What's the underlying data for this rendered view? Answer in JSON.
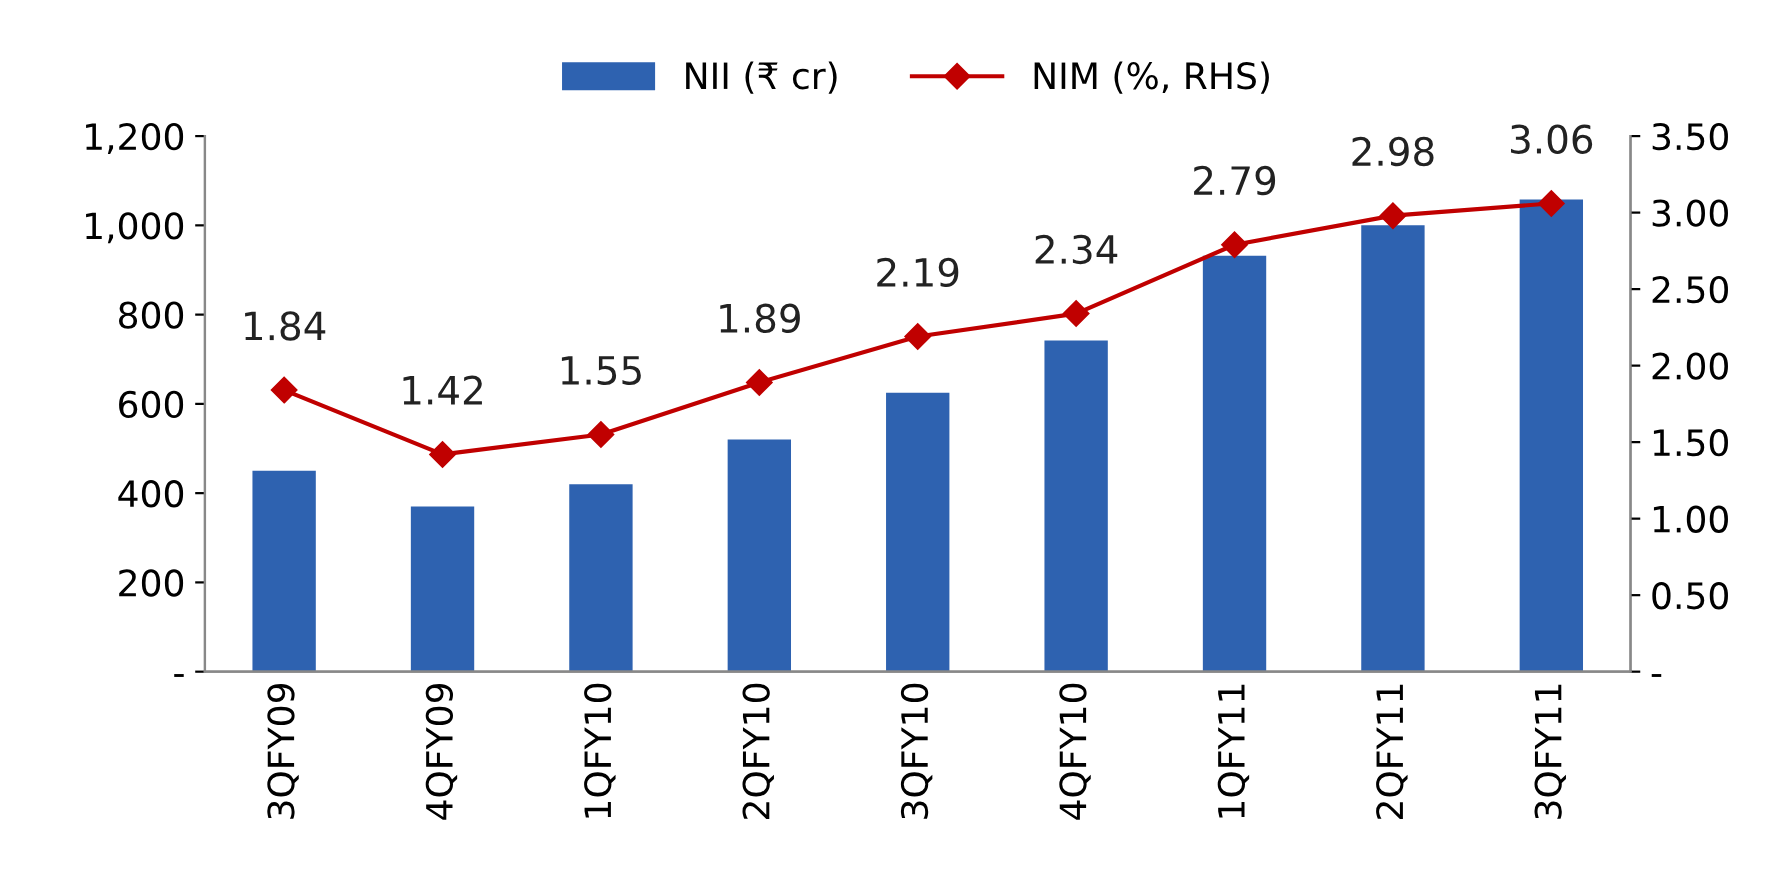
{
  "chart_data": {
    "type": "bar",
    "categories": [
      "3QFY09",
      "4QFY09",
      "1QFY10",
      "2QFY10",
      "3QFY10",
      "4QFY10",
      "1QFY11",
      "2QFY11",
      "3QFY11"
    ],
    "series": [
      {
        "name": "NII (₹ cr)",
        "color": "#2e62b0",
        "values": [
          450,
          370,
          420,
          520,
          625,
          742,
          932,
          1000,
          1058
        ]
      },
      {
        "name": "NIM (%, RHS)",
        "type": "line",
        "axis": "y2",
        "color": "#c00000",
        "marker": "diamond",
        "values": [
          1.84,
          1.42,
          1.55,
          1.89,
          2.19,
          2.34,
          2.79,
          2.98,
          3.06
        ],
        "value_labels": [
          "1.84",
          "1.42",
          "1.55",
          "1.89",
          "2.19",
          "2.34",
          "2.79",
          "2.98",
          "3.06"
        ]
      }
    ],
    "ylim": [
      0,
      1200
    ],
    "yticks": [
      {
        "value": 0,
        "label": "-"
      },
      {
        "value": 200,
        "label": "200"
      },
      {
        "value": 400,
        "label": "400"
      },
      {
        "value": 600,
        "label": "600"
      },
      {
        "value": 800,
        "label": "800"
      },
      {
        "value": 1000,
        "label": "1,000"
      },
      {
        "value": 1200,
        "label": "1,200"
      }
    ],
    "y2lim": [
      0,
      3.5
    ],
    "y2ticks": [
      {
        "value": 0,
        "label": "-"
      },
      {
        "value": 0.5,
        "label": "0.50"
      },
      {
        "value": 1.0,
        "label": "1.00"
      },
      {
        "value": 1.5,
        "label": "1.50"
      },
      {
        "value": 2.0,
        "label": "2.00"
      },
      {
        "value": 2.5,
        "label": "2.50"
      },
      {
        "value": 3.0,
        "label": "3.00"
      },
      {
        "value": 3.5,
        "label": "3.50"
      }
    ],
    "legend": "top",
    "grid": false
  }
}
